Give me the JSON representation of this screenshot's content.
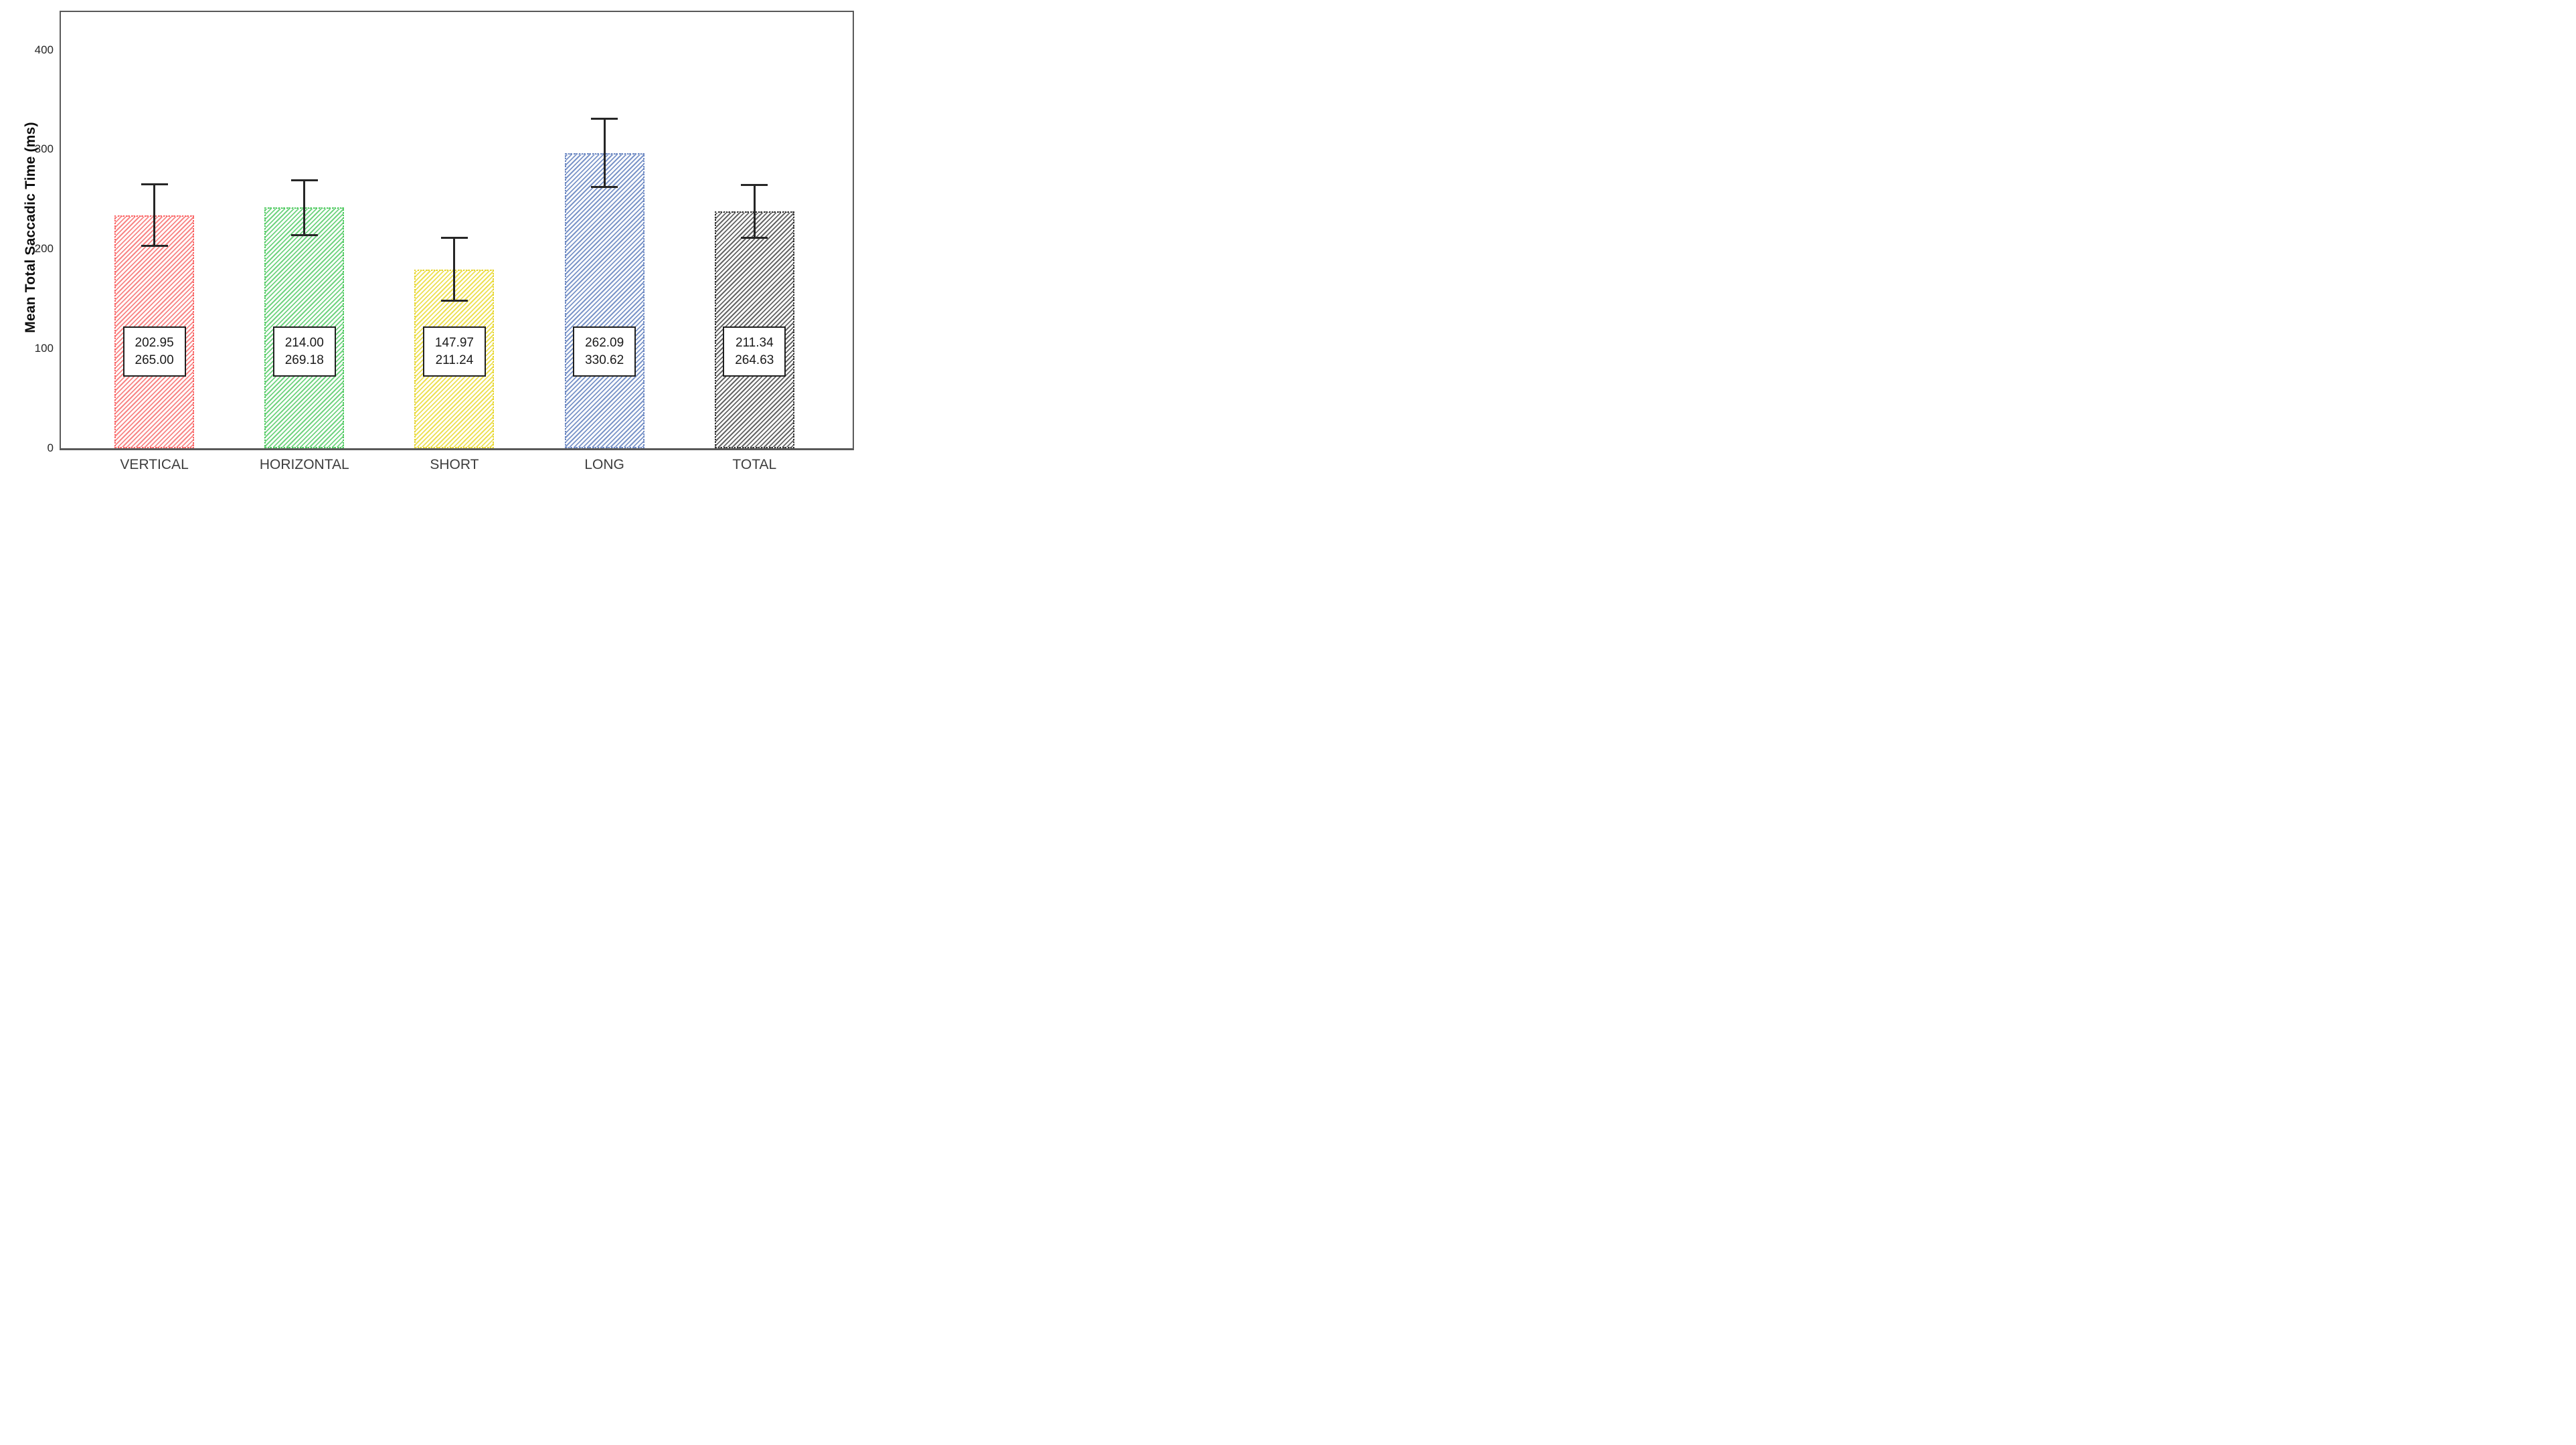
{
  "chart_data": {
    "type": "bar",
    "title": "",
    "xlabel": "",
    "ylabel": "Mean Total Saccadic Time (ms)",
    "ylim": [
      0,
      438
    ],
    "yticks": [
      "0",
      "100",
      "200",
      "300",
      "400"
    ],
    "grid": false,
    "legend": false,
    "categories": [
      "VERTICAL",
      "HORIZONTAL",
      "SHORT",
      "LONG",
      "TOTAL"
    ],
    "series": [
      {
        "name": "Mean Total Saccadic Time (ms)",
        "values": [
          233.98,
          241.59,
          179.61,
          296.36,
          237.99
        ],
        "ci_lower": [
          202.95,
          214.0,
          147.97,
          262.09,
          211.34
        ],
        "ci_upper": [
          265.0,
          269.18,
          211.24,
          330.62,
          264.63
        ]
      }
    ],
    "annotations": [
      {
        "lines": [
          "202.95",
          "265.00"
        ]
      },
      {
        "lines": [
          "214.00",
          "269.18"
        ]
      },
      {
        "lines": [
          "147.97",
          "211.24"
        ]
      },
      {
        "lines": [
          "262.09",
          "330.62"
        ]
      },
      {
        "lines": [
          "211.34",
          "264.63"
        ]
      }
    ],
    "bar_colors": [
      "#F88585",
      "#6FD37F",
      "#EDE052",
      "#7A94C8",
      "#636363"
    ],
    "bar_border_colors": [
      "#FB6060",
      "#4CC95C",
      "#E5D42E",
      "#6A86C2",
      "#2E2E2E"
    ],
    "error_bar_color": "#262626",
    "axis_color": "#595959",
    "tick_label_color": "#262626",
    "category_label_color": "#3D3D3D",
    "annotation_border_color": "#1F1F1F"
  }
}
